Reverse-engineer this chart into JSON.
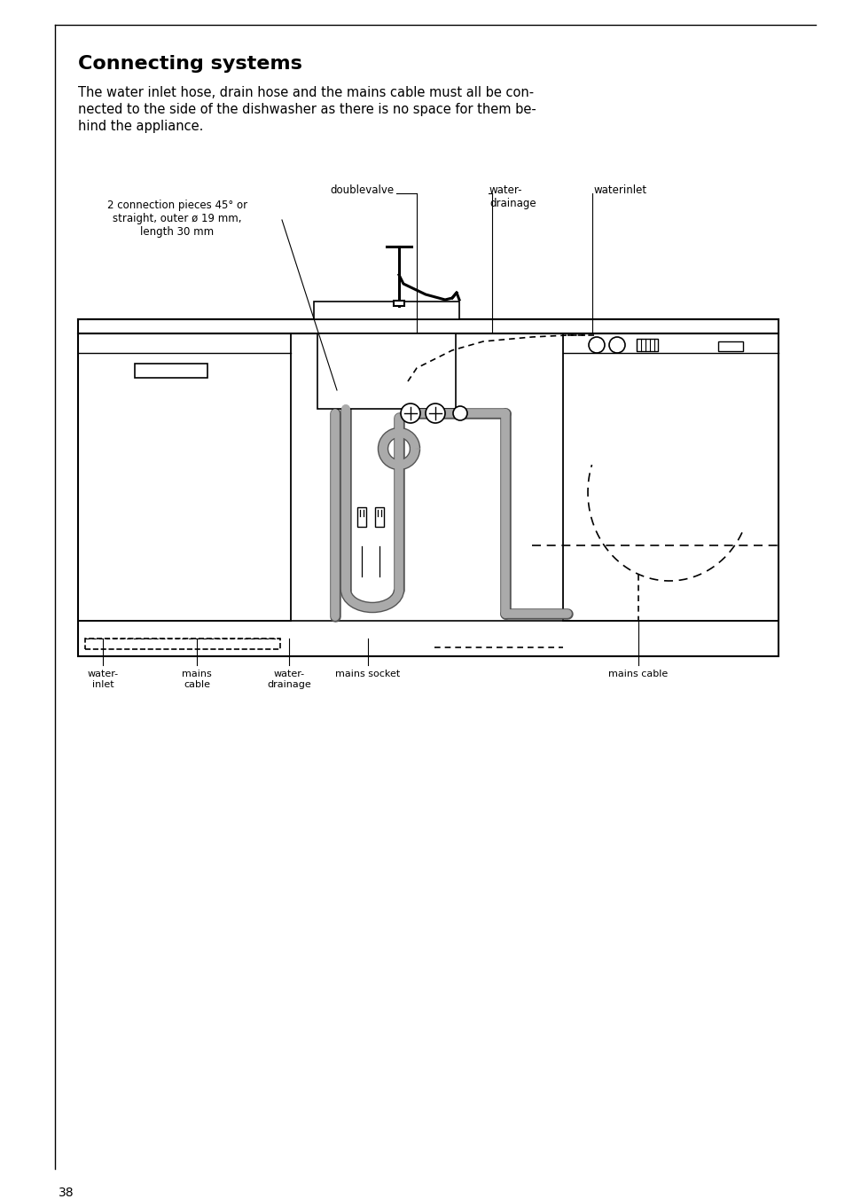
{
  "title": "Connecting systems",
  "body_line1": "The water inlet hose, drain hose and the mains cable must all be con-",
  "body_line2": "nected to the side of the dishwasher as there is no space for them be-",
  "body_line3": "hind the appliance.",
  "page_number": "38",
  "bg_color": "#ffffff",
  "text_color": "#000000",
  "title_fontsize": 16,
  "body_fontsize": 10.5,
  "label_fontsize": 8.5,
  "small_label_fontsize": 8,
  "border_color": "#000000",
  "label_2conn": "2 connection pieces 45° or\nstraight, outer ø 19 mm,\nlength 30 mm",
  "label_doublevalve": "doublevalve",
  "label_waterdrainage_top": "water-\ndrainage",
  "label_waterinlet": "waterinlet",
  "label_waterinlet_bot": "water-\ninlet",
  "label_mainscable_bot": "mains\ncable",
  "label_waterdrainage_bot": "water-\ndrainage",
  "label_mainssocket": "mains socket",
  "label_mainscable_right": "mains cable"
}
